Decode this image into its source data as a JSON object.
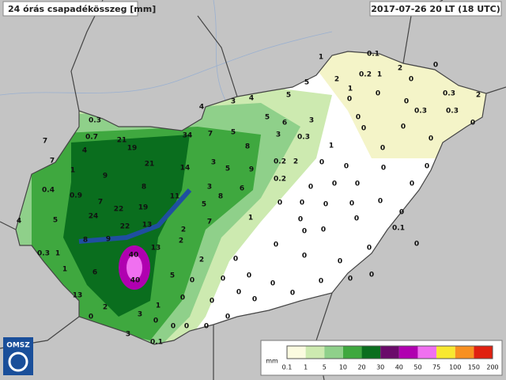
{
  "header": {
    "title": "24 órás csapadékösszeg [mm]",
    "timestamp": "2017-07-26 20 LT (18 UTC)"
  },
  "logo": "OMSZ",
  "stations": [
    1,
    0.1,
    0,
    0.2,
    1,
    2,
    2,
    0,
    5,
    1,
    0,
    0,
    0.3,
    2,
    4,
    3,
    4,
    5,
    0,
    0,
    0.3,
    0.3,
    0,
    0,
    0,
    0.3,
    5,
    6,
    3,
    0.7,
    21,
    7,
    4,
    19,
    34,
    7,
    5,
    3,
    0.3,
    0,
    8,
    1,
    0,
    7,
    9,
    21,
    3,
    5,
    9,
    0.2,
    2,
    0,
    0,
    0,
    0,
    1,
    14,
    0.2,
    0,
    0.4,
    8,
    3,
    6,
    0,
    0,
    0,
    0.9,
    11,
    5,
    8,
    7,
    22,
    19,
    0,
    0,
    0,
    0,
    0,
    4,
    5,
    24,
    13,
    22,
    7,
    1,
    0,
    0,
    0,
    0.1,
    8,
    9,
    2,
    0,
    0,
    2,
    0,
    0,
    0,
    0.3,
    1,
    40,
    13,
    0,
    0,
    0,
    2,
    1,
    6,
    5,
    0,
    0,
    0,
    0,
    40,
    0,
    0,
    0,
    13,
    0,
    0,
    0,
    0,
    0,
    2,
    1,
    0,
    3,
    0,
    0,
    0,
    0,
    0,
    3,
    0.1
  ],
  "legend": {
    "unit": "mm",
    "labels": [
      0.1,
      1,
      5,
      10,
      20,
      30,
      40,
      50,
      75,
      100,
      150,
      200
    ],
    "colors": [
      "#fbfbe0",
      "#cdeab0",
      "#8fd08a",
      "#3fa83f",
      "#0a6e1e",
      "#6a0a6a",
      "#b000b0",
      "#f070f0",
      "#f8e830",
      "#f89020",
      "#e02010"
    ]
  }
}
